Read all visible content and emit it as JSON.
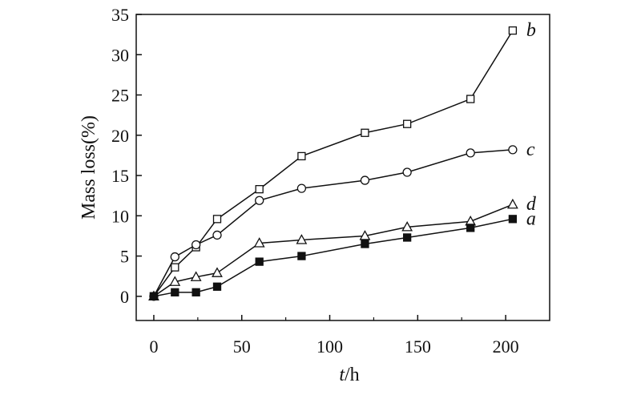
{
  "chart_data": {
    "type": "line",
    "xlabel_italic": "t",
    "xlabel_rest": "/h",
    "ylabel": "Mass loss(%)",
    "xlim": [
      -10,
      225
    ],
    "ylim": [
      -3,
      35
    ],
    "x_ticks": [
      0,
      50,
      100,
      150,
      200
    ],
    "y_ticks": [
      0,
      5,
      10,
      15,
      20,
      25,
      30,
      35
    ],
    "series": [
      {
        "name": "b",
        "marker": "open-square",
        "x": [
          0,
          12,
          24,
          36,
          60,
          84,
          120,
          144,
          180,
          204
        ],
        "y": [
          0,
          3.6,
          6.1,
          9.6,
          13.3,
          17.4,
          20.3,
          21.4,
          24.5,
          33.0
        ]
      },
      {
        "name": "c",
        "marker": "open-circle",
        "x": [
          0,
          12,
          24,
          36,
          60,
          84,
          120,
          144,
          180,
          204
        ],
        "y": [
          0,
          4.9,
          6.4,
          7.6,
          11.9,
          13.4,
          14.4,
          15.4,
          17.8,
          18.2
        ]
      },
      {
        "name": "d",
        "marker": "open-triangle",
        "x": [
          0,
          12,
          24,
          36,
          60,
          84,
          120,
          144,
          180,
          204
        ],
        "y": [
          0,
          1.8,
          2.4,
          2.9,
          6.6,
          7.0,
          7.5,
          8.6,
          9.3,
          11.4
        ]
      },
      {
        "name": "a",
        "marker": "filled-square",
        "x": [
          0,
          12,
          24,
          36,
          60,
          84,
          120,
          144,
          180,
          204
        ],
        "y": [
          0,
          0.5,
          0.5,
          1.2,
          4.3,
          5.0,
          6.5,
          7.3,
          8.5,
          9.6
        ]
      }
    ]
  }
}
